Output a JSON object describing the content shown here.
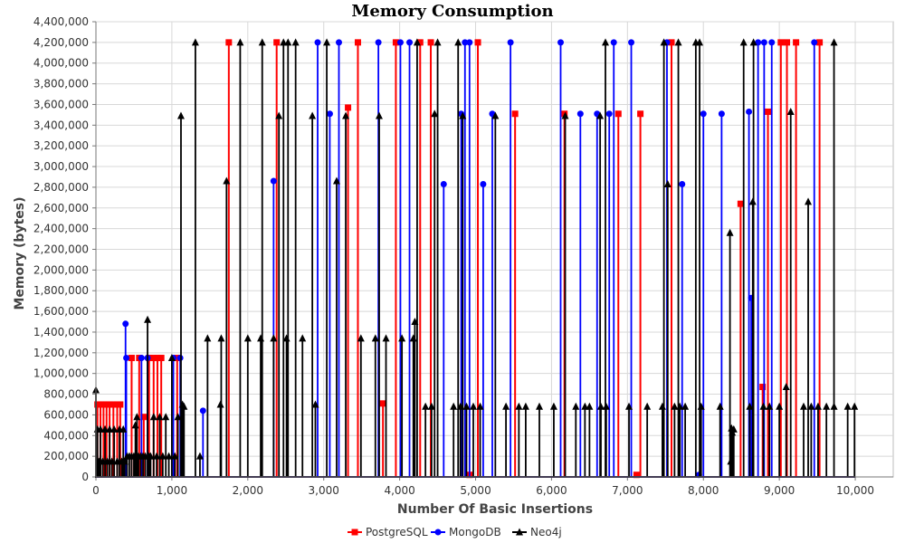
{
  "chart_data": {
    "type": "line",
    "title": "Memory Consumption",
    "xlabel": "Number Of Basic Insertions",
    "ylabel": "Memory (bytes)",
    "xlim": [
      0,
      10500
    ],
    "ylim": [
      0,
      4400000
    ],
    "x_ticks": [
      0,
      1000,
      2000,
      3000,
      4000,
      5000,
      6000,
      7000,
      8000,
      9000,
      10000
    ],
    "x_tick_labels": [
      "0",
      "1,000",
      "2,000",
      "3,000",
      "4,000",
      "5,000",
      "6,000",
      "7,000",
      "8,000",
      "9,000",
      "10,000"
    ],
    "y_ticks": [
      0,
      200000,
      400000,
      600000,
      800000,
      1000000,
      1200000,
      1400000,
      1600000,
      1800000,
      2000000,
      2200000,
      2400000,
      2600000,
      2800000,
      3000000,
      3200000,
      3400000,
      3600000,
      3800000,
      4000000,
      4200000,
      4400000
    ],
    "y_tick_labels": [
      "0",
      "200,000",
      "400,000",
      "600,000",
      "800,000",
      "1,000,000",
      "1,200,000",
      "1,400,000",
      "1,600,000",
      "1,800,000",
      "2,000,000",
      "2,200,000",
      "2,400,000",
      "2,600,000",
      "2,800,000",
      "3,000,000",
      "3,200,000",
      "3,400,000",
      "3,600,000",
      "3,800,000",
      "4,000,000",
      "4,200,000",
      "4,400,000"
    ],
    "grid": true,
    "legend_position": "bottom-center",
    "series": [
      {
        "name": "PostgreSQL",
        "color": "#ff0000",
        "marker": "square",
        "spikes": [
          [
            20,
            700000
          ],
          [
            60,
            700000
          ],
          [
            100,
            700000
          ],
          [
            140,
            700000
          ],
          [
            180,
            700000
          ],
          [
            230,
            700000
          ],
          [
            280,
            700000
          ],
          [
            320,
            700000
          ],
          [
            470,
            1150000
          ],
          [
            570,
            1150000
          ],
          [
            630,
            580000
          ],
          [
            700,
            1150000
          ],
          [
            760,
            1150000
          ],
          [
            810,
            1150000
          ],
          [
            860,
            1150000
          ],
          [
            1070,
            1150000
          ],
          [
            1750,
            4200000
          ],
          [
            2380,
            4200000
          ],
          [
            3320,
            3570000
          ],
          [
            3450,
            4200000
          ],
          [
            3780,
            710000
          ],
          [
            3950,
            4200000
          ],
          [
            4270,
            4200000
          ],
          [
            4410,
            4200000
          ],
          [
            4920,
            20000
          ],
          [
            5030,
            4200000
          ],
          [
            5520,
            3510000
          ],
          [
            6170,
            3510000
          ],
          [
            6880,
            3510000
          ],
          [
            7120,
            20000
          ],
          [
            7170,
            3510000
          ],
          [
            7580,
            4200000
          ],
          [
            8490,
            2640000
          ],
          [
            8780,
            870000
          ],
          [
            8850,
            3530000
          ],
          [
            9020,
            4200000
          ],
          [
            9100,
            4200000
          ],
          [
            9220,
            4200000
          ],
          [
            9530,
            4200000
          ]
        ]
      },
      {
        "name": "MongoDB",
        "color": "#0000ff",
        "marker": "circle",
        "spikes": [
          [
            390,
            1480000
          ],
          [
            400,
            1150000
          ],
          [
            600,
            1150000
          ],
          [
            680,
            1150000
          ],
          [
            1020,
            1150000
          ],
          [
            1110,
            1150000
          ],
          [
            1410,
            640000
          ],
          [
            2340,
            2860000
          ],
          [
            2920,
            4200000
          ],
          [
            3080,
            3510000
          ],
          [
            3200,
            4200000
          ],
          [
            3720,
            4200000
          ],
          [
            4010,
            4200000
          ],
          [
            4130,
            4200000
          ],
          [
            4580,
            2830000
          ],
          [
            4810,
            3510000
          ],
          [
            4860,
            4200000
          ],
          [
            4920,
            4200000
          ],
          [
            5100,
            2830000
          ],
          [
            5220,
            3510000
          ],
          [
            5460,
            4200000
          ],
          [
            6120,
            4200000
          ],
          [
            6380,
            3510000
          ],
          [
            6600,
            3510000
          ],
          [
            6760,
            3510000
          ],
          [
            6820,
            4200000
          ],
          [
            7050,
            4200000
          ],
          [
            7520,
            4200000
          ],
          [
            7720,
            2830000
          ],
          [
            7940,
            20000
          ],
          [
            8000,
            3510000
          ],
          [
            8240,
            3510000
          ],
          [
            8600,
            3530000
          ],
          [
            8630,
            1730000
          ],
          [
            8720,
            4200000
          ],
          [
            8800,
            4200000
          ],
          [
            8900,
            4200000
          ],
          [
            9460,
            4200000
          ]
        ]
      },
      {
        "name": "Neo4j",
        "color": "#000000",
        "marker": "triangle",
        "spikes": [
          [
            0,
            840000
          ],
          [
            20,
            460000
          ],
          [
            40,
            150000
          ],
          [
            60,
            460000
          ],
          [
            90,
            150000
          ],
          [
            120,
            460000
          ],
          [
            150,
            150000
          ],
          [
            180,
            460000
          ],
          [
            210,
            150000
          ],
          [
            240,
            460000
          ],
          [
            280,
            150000
          ],
          [
            310,
            460000
          ],
          [
            340,
            150000
          ],
          [
            360,
            460000
          ],
          [
            380,
            150000
          ],
          [
            410,
            200000
          ],
          [
            440,
            200000
          ],
          [
            470,
            200000
          ],
          [
            500,
            200000
          ],
          [
            520,
            500000
          ],
          [
            540,
            580000
          ],
          [
            560,
            200000
          ],
          [
            590,
            200000
          ],
          [
            620,
            200000
          ],
          [
            650,
            200000
          ],
          [
            680,
            1520000
          ],
          [
            700,
            200000
          ],
          [
            720,
            200000
          ],
          [
            760,
            580000
          ],
          [
            800,
            200000
          ],
          [
            840,
            580000
          ],
          [
            880,
            200000
          ],
          [
            920,
            580000
          ],
          [
            960,
            200000
          ],
          [
            1000,
            1150000
          ],
          [
            1040,
            200000
          ],
          [
            1080,
            580000
          ],
          [
            1120,
            3490000
          ],
          [
            1140,
            700000
          ],
          [
            1160,
            680000
          ],
          [
            1310,
            4200000
          ],
          [
            1370,
            200000
          ],
          [
            1470,
            1340000
          ],
          [
            1640,
            700000
          ],
          [
            1650,
            1340000
          ],
          [
            1720,
            2860000
          ],
          [
            1900,
            4200000
          ],
          [
            2000,
            1340000
          ],
          [
            2170,
            1340000
          ],
          [
            2190,
            4200000
          ],
          [
            2340,
            1340000
          ],
          [
            2410,
            3490000
          ],
          [
            2470,
            4200000
          ],
          [
            2510,
            1340000
          ],
          [
            2530,
            4200000
          ],
          [
            2630,
            4200000
          ],
          [
            2720,
            1340000
          ],
          [
            2850,
            3490000
          ],
          [
            2890,
            700000
          ],
          [
            3040,
            4200000
          ],
          [
            3170,
            2860000
          ],
          [
            3290,
            3490000
          ],
          [
            3490,
            1340000
          ],
          [
            3680,
            1340000
          ],
          [
            3730,
            3490000
          ],
          [
            3820,
            1340000
          ],
          [
            4030,
            1340000
          ],
          [
            4180,
            1340000
          ],
          [
            4200,
            1500000
          ],
          [
            4230,
            4200000
          ],
          [
            4340,
            680000
          ],
          [
            4420,
            680000
          ],
          [
            4460,
            3510000
          ],
          [
            4500,
            4200000
          ],
          [
            4710,
            680000
          ],
          [
            4770,
            4200000
          ],
          [
            4800,
            680000
          ],
          [
            4830,
            3490000
          ],
          [
            4880,
            680000
          ],
          [
            4970,
            680000
          ],
          [
            5060,
            680000
          ],
          [
            5260,
            3490000
          ],
          [
            5400,
            680000
          ],
          [
            5570,
            680000
          ],
          [
            5660,
            680000
          ],
          [
            5840,
            680000
          ],
          [
            6030,
            680000
          ],
          [
            6180,
            3490000
          ],
          [
            6320,
            680000
          ],
          [
            6440,
            680000
          ],
          [
            6500,
            680000
          ],
          [
            6640,
            3490000
          ],
          [
            6650,
            680000
          ],
          [
            6710,
            4200000
          ],
          [
            6720,
            680000
          ],
          [
            7020,
            680000
          ],
          [
            7260,
            680000
          ],
          [
            7460,
            680000
          ],
          [
            7480,
            4200000
          ],
          [
            7530,
            2830000
          ],
          [
            7620,
            680000
          ],
          [
            7670,
            4200000
          ],
          [
            7690,
            680000
          ],
          [
            7760,
            680000
          ],
          [
            7900,
            4200000
          ],
          [
            7950,
            4200000
          ],
          [
            7970,
            680000
          ],
          [
            8220,
            680000
          ],
          [
            8350,
            2360000
          ],
          [
            8360,
            150000
          ],
          [
            8370,
            470000
          ],
          [
            8380,
            430000
          ],
          [
            8400,
            460000
          ],
          [
            8530,
            4200000
          ],
          [
            8610,
            680000
          ],
          [
            8650,
            2660000
          ],
          [
            8660,
            4200000
          ],
          [
            8790,
            680000
          ],
          [
            8870,
            680000
          ],
          [
            9000,
            680000
          ],
          [
            9090,
            870000
          ],
          [
            9150,
            3530000
          ],
          [
            9320,
            680000
          ],
          [
            9380,
            2660000
          ],
          [
            9420,
            680000
          ],
          [
            9510,
            680000
          ],
          [
            9620,
            680000
          ],
          [
            9720,
            4200000
          ],
          [
            9720,
            680000
          ],
          [
            9900,
            680000
          ],
          [
            9990,
            680000
          ]
        ]
      }
    ]
  }
}
